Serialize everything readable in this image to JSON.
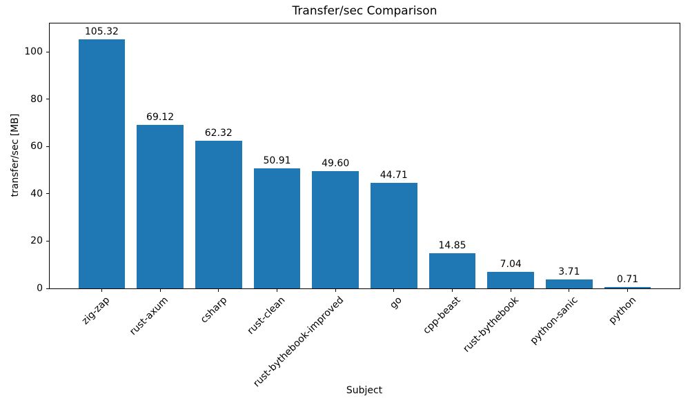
{
  "chart_data": {
    "type": "bar",
    "title": "Transfer/sec Comparison",
    "xlabel": "Subject",
    "ylabel": "transfer/sec [MB]",
    "categories": [
      "zig-zap",
      "rust-axum",
      "csharp",
      "rust-clean",
      "rust-bythebook-improved",
      "go",
      "cpp-beast",
      "rust-bythebook",
      "python-sanic",
      "python"
    ],
    "values": [
      105.32,
      69.12,
      62.32,
      50.91,
      49.6,
      44.71,
      14.85,
      7.04,
      3.71,
      0.71
    ],
    "value_labels": [
      "105.32",
      "69.12",
      "62.32",
      "50.91",
      "49.60",
      "44.71",
      "14.85",
      "7.04",
      "3.71",
      "0.71"
    ],
    "yticks": [
      0,
      20,
      40,
      60,
      80,
      100
    ],
    "ylim": [
      0,
      112
    ],
    "xlim": [
      -0.89,
      9.89
    ],
    "bar_width": 0.8,
    "bar_color": "#1f77b4",
    "text_color": "#000000",
    "grid": false,
    "legend": null,
    "xtick_rotation_deg": 45
  }
}
